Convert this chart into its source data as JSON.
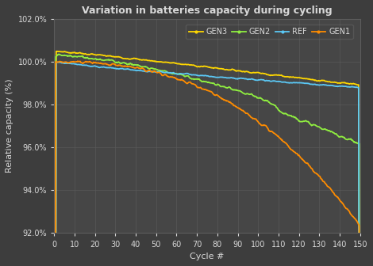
{
  "title": "Variation in batteries capacity during cycling",
  "xlabel": "Cycle #",
  "ylabel": "Relative capacity (%)",
  "background_color": "#3d3d3d",
  "plot_bg_color": "#464646",
  "grid_color": "#5c5c5c",
  "text_color": "#d8d8d8",
  "xlim": [
    0,
    150
  ],
  "ylim": [
    92.0,
    102.0
  ],
  "yticks": [
    92.0,
    94.0,
    96.0,
    98.0,
    100.0,
    102.0
  ],
  "xticks": [
    0,
    10,
    20,
    30,
    40,
    50,
    60,
    70,
    80,
    90,
    100,
    110,
    120,
    130,
    140,
    150
  ],
  "series": {
    "REF": {
      "color": "#5bc8f5",
      "start": 100.0,
      "end": 98.8
    },
    "GEN1": {
      "color": "#ff8c00",
      "start": 100.0,
      "end": 92.3
    },
    "GEN2": {
      "color": "#90ee40",
      "start": 100.3,
      "end": 96.5
    },
    "GEN3": {
      "color": "#ffd700",
      "start": 100.5,
      "end": 98.9
    }
  },
  "line_width": 1.3,
  "noise_scale_ref": 0.04,
  "noise_scale_gen1": 0.06,
  "noise_scale_gen2": 0.07,
  "noise_scale_gen3": 0.05
}
